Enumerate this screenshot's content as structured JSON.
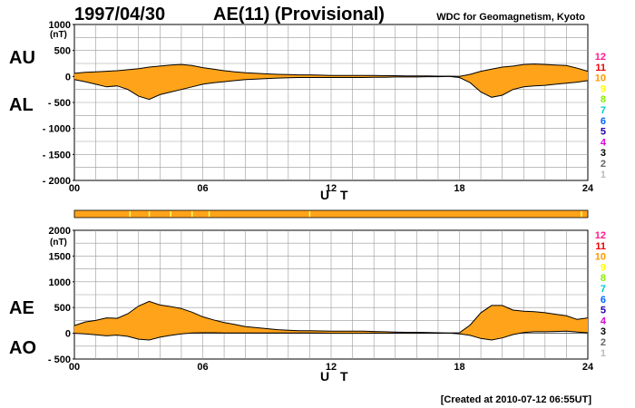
{
  "header": {
    "date": "1997/04/30",
    "title": "AE(11) (Provisional)",
    "source": "WDC for Geomagnetism, Kyoto"
  },
  "footer": {
    "created": "[Created at 2010-07-12 06:55UT]"
  },
  "station_legend": {
    "labels": [
      "12",
      "11",
      "10",
      "9",
      "8",
      "7",
      "6",
      "5",
      "4",
      "3",
      "2",
      "1"
    ],
    "colors": [
      "#ff1a8c",
      "#ee0000",
      "#ff9900",
      "#ffff00",
      "#88ee00",
      "#00cccc",
      "#0066ff",
      "#2200aa",
      "#dd00dd",
      "#000000",
      "#666666",
      "#bbbbbb"
    ]
  },
  "colors": {
    "fill": "#ffa31a",
    "line": "#000000",
    "marker": "#ffff66",
    "grid": "#999999"
  },
  "chart_data": [
    {
      "type": "area",
      "title": "AU / AL",
      "xlabel": "U T",
      "upper_label": "AU",
      "lower_label": "AL",
      "unit": "(nT)",
      "xlim": [
        0,
        24
      ],
      "ylim": [
        -2000,
        1000
      ],
      "xticks": [
        "00",
        "06",
        "12",
        "18",
        "24"
      ],
      "yticks": [
        "1000",
        "500",
        "0",
        "- 500",
        "- 1000",
        "- 1500",
        "- 2000"
      ],
      "x": [
        0,
        0.5,
        1,
        1.5,
        2,
        2.5,
        3,
        3.5,
        4,
        4.5,
        5,
        5.5,
        6,
        6.5,
        7,
        7.5,
        8,
        8.5,
        9,
        9.5,
        10,
        10.5,
        11,
        11.5,
        12,
        12.5,
        13,
        13.5,
        14,
        14.5,
        15,
        15.5,
        16,
        16.5,
        17,
        17.5,
        18,
        18.5,
        19,
        19.5,
        20,
        20.5,
        21,
        21.5,
        22,
        22.5,
        23,
        23.5,
        24
      ],
      "series": [
        {
          "name": "AU",
          "values": [
            60,
            80,
            90,
            100,
            110,
            130,
            150,
            180,
            200,
            220,
            230,
            210,
            170,
            140,
            110,
            90,
            70,
            60,
            50,
            40,
            35,
            30,
            30,
            25,
            20,
            20,
            20,
            20,
            20,
            15,
            15,
            10,
            10,
            10,
            5,
            5,
            0,
            40,
            100,
            140,
            180,
            200,
            230,
            240,
            230,
            220,
            210,
            160,
            100
          ]
        },
        {
          "name": "AL",
          "values": [
            -60,
            -100,
            -150,
            -200,
            -180,
            -250,
            -380,
            -440,
            -350,
            -300,
            -250,
            -200,
            -150,
            -120,
            -100,
            -80,
            -60,
            -50,
            -40,
            -30,
            -25,
            -20,
            -20,
            -20,
            -20,
            -20,
            -20,
            -20,
            -15,
            -15,
            -10,
            -10,
            -10,
            -5,
            -5,
            0,
            -20,
            -120,
            -300,
            -400,
            -360,
            -250,
            -200,
            -180,
            -170,
            -150,
            -130,
            -110,
            -80
          ]
        }
      ]
    },
    {
      "type": "area",
      "title": "AE / AO",
      "xlabel": "U T",
      "upper_label": "AE",
      "lower_label": "AO",
      "unit": "(nT)",
      "xlim": [
        0,
        24
      ],
      "ylim": [
        -500,
        2000
      ],
      "xticks": [
        "00",
        "06",
        "12",
        "18",
        "24"
      ],
      "yticks": [
        "2000",
        "1500",
        "1000",
        "500",
        "0",
        "- 500"
      ],
      "x": [
        0,
        0.5,
        1,
        1.5,
        2,
        2.5,
        3,
        3.5,
        4,
        4.5,
        5,
        5.5,
        6,
        6.5,
        7,
        7.5,
        8,
        8.5,
        9,
        9.5,
        10,
        10.5,
        11,
        11.5,
        12,
        12.5,
        13,
        13.5,
        14,
        14.5,
        15,
        15.5,
        16,
        16.5,
        17,
        17.5,
        18,
        18.5,
        19,
        19.5,
        20,
        20.5,
        21,
        21.5,
        22,
        22.5,
        23,
        23.5,
        24
      ],
      "series": [
        {
          "name": "AE",
          "values": [
            150,
            220,
            250,
            300,
            290,
            380,
            530,
            620,
            550,
            520,
            480,
            410,
            320,
            260,
            210,
            170,
            130,
            110,
            90,
            70,
            60,
            50,
            50,
            45,
            40,
            40,
            40,
            40,
            35,
            30,
            25,
            20,
            20,
            15,
            10,
            5,
            10,
            160,
            400,
            540,
            540,
            450,
            430,
            420,
            400,
            370,
            340,
            270,
            300
          ]
        },
        {
          "name": "AO",
          "values": [
            0,
            -10,
            -30,
            -50,
            -35,
            -60,
            -115,
            -130,
            -75,
            -40,
            -10,
            5,
            10,
            10,
            5,
            5,
            5,
            5,
            5,
            5,
            5,
            5,
            5,
            3,
            0,
            0,
            0,
            0,
            3,
            0,
            3,
            0,
            0,
            3,
            0,
            3,
            -10,
            -40,
            -100,
            -130,
            -90,
            -25,
            15,
            30,
            30,
            35,
            40,
            25,
            10
          ]
        }
      ]
    }
  ]
}
